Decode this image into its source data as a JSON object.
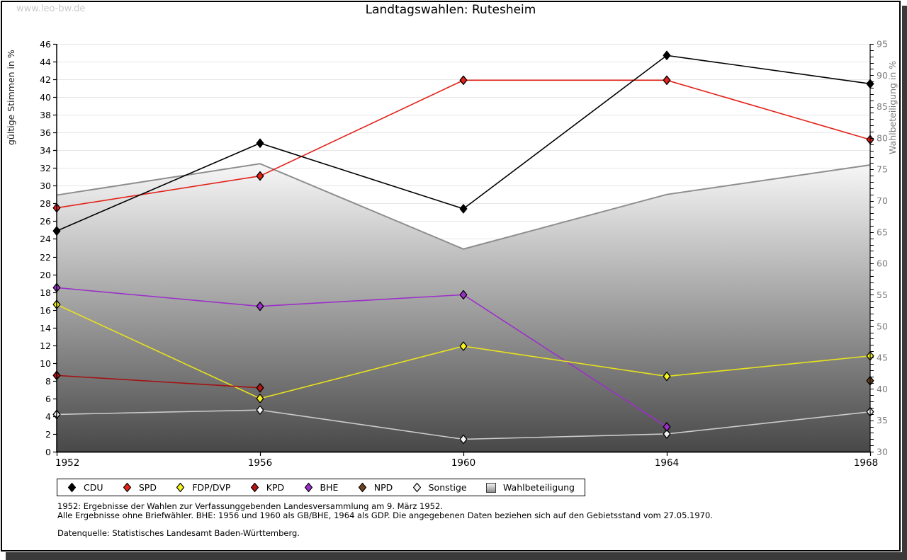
{
  "watermark": "www.leo-bw.de",
  "title": "Landtagswahlen: Rutesheim",
  "chart_data": {
    "type": "line",
    "title": "Landtagswahlen: Rutesheim",
    "x_categories": [
      "1952",
      "1956",
      "1960",
      "1964",
      "1968"
    ],
    "grid": "horizontal",
    "left_axis": {
      "label": "gültige Stimmen in %",
      "min": 0,
      "max": 46,
      "tick_step": 2
    },
    "right_axis": {
      "label": "Wahlbeteiligung in %",
      "min": 30,
      "max": 95,
      "label_step": 5,
      "minor_step": 1
    },
    "series": [
      {
        "name": "Wahlbeteiligung",
        "type": "area",
        "axis": "right",
        "stroke": "#8e8e8e",
        "fill_top": "#fafafa",
        "fill_bottom": "#474747",
        "values": [
          70.9,
          75.9,
          62.3,
          71.0,
          75.7
        ]
      },
      {
        "name": "Sonstige",
        "type": "line",
        "axis": "left",
        "color": "#cbcbcb",
        "marker_fill": "#f2f2f2",
        "values": [
          4.2,
          4.7,
          1.4,
          2.0,
          4.5
        ]
      },
      {
        "name": "BHE",
        "type": "line",
        "axis": "left",
        "color": "#9b30c9",
        "marker_fill": "#9b30c9",
        "values": [
          18.5,
          16.4,
          17.7,
          2.8,
          null
        ]
      },
      {
        "name": "FDP/DVP",
        "type": "line",
        "axis": "left",
        "color": "#e8e21c",
        "marker_fill": "#f6f320",
        "values": [
          16.6,
          6.0,
          11.9,
          8.5,
          10.8
        ]
      },
      {
        "name": "KPD",
        "type": "line",
        "axis": "left",
        "color": "#a51111",
        "marker_fill": "#b81414",
        "values": [
          8.6,
          7.2,
          null,
          null,
          null
        ]
      },
      {
        "name": "SPD",
        "type": "line",
        "axis": "left",
        "color": "#e32219",
        "marker_fill": "#e32219",
        "values": [
          27.5,
          31.1,
          41.9,
          41.9,
          35.2
        ]
      },
      {
        "name": "CDU",
        "type": "line",
        "axis": "left",
        "color": "#000000",
        "marker_fill": "#000000",
        "values": [
          24.9,
          34.8,
          27.4,
          44.7,
          41.5
        ]
      },
      {
        "name": "NPD",
        "type": "line",
        "axis": "left",
        "color": "#70431f",
        "marker_fill": "#70431f",
        "values": [
          null,
          null,
          null,
          null,
          8.0
        ]
      }
    ]
  },
  "legend": {
    "items": [
      {
        "label": "CDU",
        "marker": "diamond",
        "color": "#000000"
      },
      {
        "label": "SPD",
        "marker": "diamond",
        "color": "#e32219"
      },
      {
        "label": "FDP/DVP",
        "marker": "diamond",
        "color": "#f6f320"
      },
      {
        "label": "KPD",
        "marker": "diamond",
        "color": "#b81414"
      },
      {
        "label": "BHE",
        "marker": "diamond",
        "color": "#9b30c9"
      },
      {
        "label": "NPD",
        "marker": "diamond",
        "color": "#70431f"
      },
      {
        "label": "Sonstige",
        "marker": "diamond",
        "color": "#f2f2f2"
      },
      {
        "label": "Wahlbeteiligung",
        "marker": "square-gradient",
        "color": "#b5b5b5"
      }
    ]
  },
  "notes": {
    "line1": "1952: Ergebnisse der Wahlen zur Verfassunggebenden Landesversammlung am 9. März 1952.",
    "line2": "Alle Ergebnisse ohne Briefwähler. BHE: 1956 und 1960 als GB/BHE, 1964 als GDP. Die angegebenen Daten beziehen sich auf den Gebietsstand vom 27.05.1970.",
    "source": "Datenquelle: Statistisches Landesamt Baden-Württemberg."
  }
}
